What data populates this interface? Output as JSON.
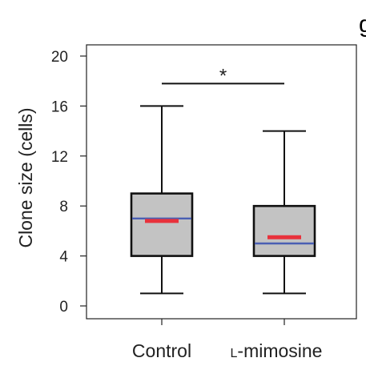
{
  "panel_label": "g",
  "chart_data": {
    "type": "box",
    "ylabel": "Clone size (cells)",
    "ylim": [
      -1,
      22
    ],
    "yticks": [
      0,
      4,
      8,
      12,
      16,
      20
    ],
    "ytick_labels": [
      "0",
      "4",
      "8",
      "12",
      "16",
      "20"
    ],
    "categories": [
      "Control",
      "L-mimosine"
    ],
    "category_labels": [
      "Control",
      "l-mimosine"
    ],
    "boxes": [
      {
        "category": "Control",
        "whisker_low": 1,
        "q1": 4,
        "median": 7,
        "q3": 9,
        "whisker_high": 16,
        "mean": 6.8
      },
      {
        "category": "L-mimosine",
        "whisker_low": 1,
        "q1": 4,
        "median": 5,
        "q3": 8,
        "whisker_high": 14,
        "mean": 5.5
      }
    ],
    "significance": {
      "between": [
        "Control",
        "L-mimosine"
      ],
      "y": 17.8,
      "label": "*"
    },
    "colors": {
      "box_fill": "#c3c3c3",
      "median": "#4a5fb3",
      "mean": "#e8323c",
      "frame": "#222222"
    },
    "grid": false
  }
}
